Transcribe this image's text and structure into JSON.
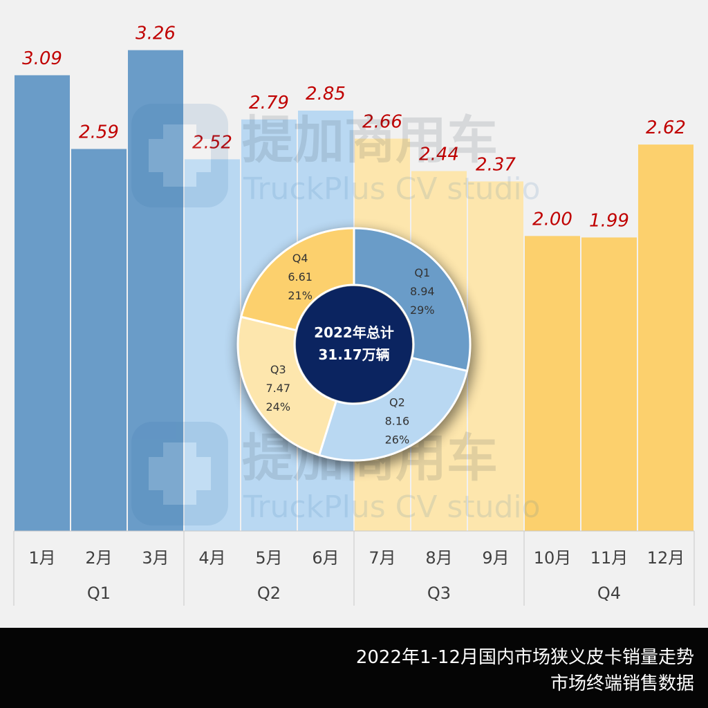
{
  "watermark": {
    "cn": "提加商用车",
    "en": "TruckPlus CV studio"
  },
  "chart_data": [
    {
      "type": "bar",
      "title": "2022年1-12月国内市场狭义皮卡销量走势",
      "subtitle": "市场终端销售数据",
      "categories": [
        "1月",
        "2月",
        "3月",
        "4月",
        "5月",
        "6月",
        "7月",
        "8月",
        "9月",
        "10月",
        "11月",
        "12月"
      ],
      "values": [
        3.09,
        2.59,
        3.26,
        2.52,
        2.79,
        2.85,
        2.66,
        2.44,
        2.37,
        2.0,
        1.99,
        2.62
      ],
      "labels": [
        "3.09",
        "2.59",
        "3.26",
        "2.52",
        "2.79",
        "2.85",
        "2.66",
        "2.44",
        "2.37",
        "2.00",
        "1.99",
        "2.62"
      ],
      "quarters": [
        {
          "name": "Q1",
          "months": [
            0,
            1,
            2
          ],
          "color": "#6a9cc8"
        },
        {
          "name": "Q2",
          "months": [
            3,
            4,
            5
          ],
          "color": "#b9d8f2"
        },
        {
          "name": "Q3",
          "months": [
            6,
            7,
            8
          ],
          "color": "#fde6ad"
        },
        {
          "name": "Q4",
          "months": [
            9,
            10,
            11
          ],
          "color": "#fcd06d"
        }
      ],
      "label_color": "#c00000",
      "ylim": [
        0,
        3.6
      ],
      "grid": false
    },
    {
      "type": "pie",
      "style": "donut",
      "center_label": [
        "2022年总计",
        "31.17万辆"
      ],
      "center_color": "#0b2460",
      "slices": [
        {
          "name": "Q1",
          "value": 8.94,
          "value_label": "8.94",
          "percent": "29%",
          "color": "#6a9cc8"
        },
        {
          "name": "Q2",
          "value": 8.16,
          "value_label": "8.16",
          "percent": "26%",
          "color": "#b9d8f2"
        },
        {
          "name": "Q3",
          "value": 7.47,
          "value_label": "7.47",
          "percent": "24%",
          "color": "#fde6ad"
        },
        {
          "name": "Q4",
          "value": 6.61,
          "value_label": "6.61",
          "percent": "21%",
          "color": "#fcd06d"
        }
      ]
    }
  ]
}
